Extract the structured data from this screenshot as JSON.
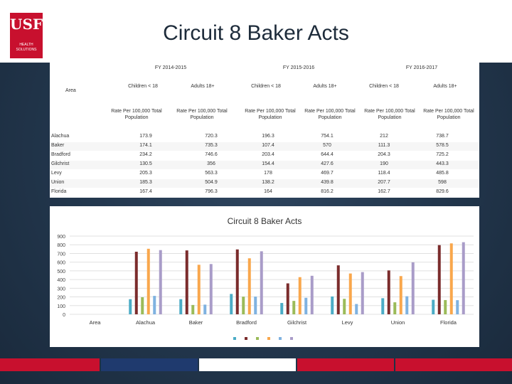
{
  "header": {
    "title": "Circuit 8 Baker Acts",
    "logo_text": "USF",
    "logo_sub": "HEALTH SOLUTIONS"
  },
  "table": {
    "area_label": "Area",
    "fiscal_years": [
      "FY 2014-2015",
      "FY 2015-2016",
      "FY 2016-2017"
    ],
    "age_groups": [
      "Children < 18",
      "Adults 18+",
      "Children < 18",
      "Adults 18+",
      "Children < 18",
      "Adults 18+"
    ],
    "rate_labels": [
      "Rate Per 100,000 Total Population",
      "Rate Per 100,000 Total Population",
      "Rate Per 100,000 Total Population",
      "Rate Per 100,000 Total Population",
      "Rate Per 100,000 Total Population",
      "Rate Per 100,000 Total Population"
    ],
    "rows": [
      {
        "area": "Alachua",
        "values": [
          "173.9",
          "720.3",
          "196.3",
          "754.1",
          "212",
          "738.7"
        ]
      },
      {
        "area": "Baker",
        "values": [
          "174.1",
          "735.3",
          "107.4",
          "570",
          "111.3",
          "578.5"
        ]
      },
      {
        "area": "Bradford",
        "values": [
          "234.2",
          "746.6",
          "203.4",
          "644.4",
          "204.3",
          "725.2"
        ]
      },
      {
        "area": "Gilchrist",
        "values": [
          "130.5",
          "356",
          "154.4",
          "427.6",
          "190",
          "443.3"
        ]
      },
      {
        "area": "Levy",
        "values": [
          "205.3",
          "563.3",
          "178",
          "469.7",
          "118.4",
          "485.8"
        ]
      },
      {
        "area": "Union",
        "values": [
          "185.3",
          "504.9",
          "138.2",
          "439.8",
          "207.7",
          "598"
        ]
      },
      {
        "area": "Florida",
        "values": [
          "167.4",
          "796.3",
          "164",
          "816.2",
          "162.7",
          "829.6"
        ]
      }
    ]
  },
  "chart_data": {
    "type": "bar",
    "title": "Circuit 8 Baker Acts",
    "categories": [
      "Area",
      "Alachua",
      "Baker",
      "Bradford",
      "Gilchrist",
      "Levy",
      "Union",
      "Florida"
    ],
    "ylim": [
      0,
      900
    ],
    "yticks": [
      0,
      100,
      200,
      300,
      400,
      500,
      600,
      700,
      800,
      900
    ],
    "grid": true,
    "legend_placement": "bottom",
    "series": [
      {
        "color": "#4bacc6",
        "values": [
          null,
          173.9,
          174.1,
          234.2,
          130.5,
          205.3,
          185.3,
          167.4
        ]
      },
      {
        "color": "#7b2c2c",
        "values": [
          null,
          720.3,
          735.3,
          746.6,
          356,
          563.3,
          504.9,
          796.3
        ]
      },
      {
        "color": "#9bbb59",
        "values": [
          null,
          196.3,
          107.4,
          203.4,
          154.4,
          178,
          138.2,
          164
        ]
      },
      {
        "color": "#f9a74c",
        "values": [
          null,
          754.1,
          570,
          644.4,
          427.6,
          469.7,
          439.8,
          816.2
        ]
      },
      {
        "color": "#7fb2e0",
        "values": [
          null,
          212,
          111.3,
          204.3,
          190,
          118.4,
          207.7,
          162.7
        ]
      },
      {
        "color": "#a99cc8",
        "values": [
          null,
          738.7,
          578.5,
          725.2,
          443.3,
          485.8,
          598,
          829.6
        ]
      }
    ]
  }
}
